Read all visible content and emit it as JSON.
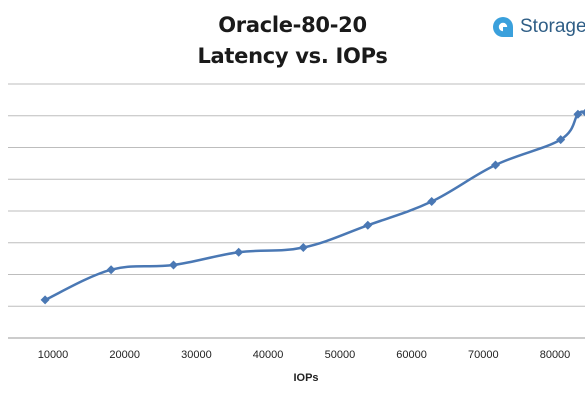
{
  "chart_data": {
    "type": "line",
    "title": "Oracle-80-20",
    "subtitle": "Latency vs. IOPs",
    "xlabel": "IOPs",
    "ylabel": "",
    "x_ticks": [
      10000,
      20000,
      30000,
      40000,
      50000,
      60000,
      70000,
      80000
    ],
    "xlim": [
      0,
      84500
    ],
    "y_gridlines": 8,
    "grid": true,
    "legend": "none",
    "series": [
      {
        "color": "#4a78b4",
        "x": [
          8900,
          18100,
          26800,
          35900,
          44900,
          53900,
          62800,
          71700,
          80800,
          83200,
          84300
        ],
        "y": [
          1.2,
          2.15,
          2.3,
          2.7,
          2.85,
          3.55,
          4.3,
          5.45,
          6.25,
          7.05,
          7.1
        ]
      }
    ],
    "y_range": [
      0,
      8
    ]
  },
  "logo": {
    "text": "Storage",
    "icon": "storage-logo-icon",
    "color": "#2f5e86",
    "accent": "#3aa0dc"
  }
}
